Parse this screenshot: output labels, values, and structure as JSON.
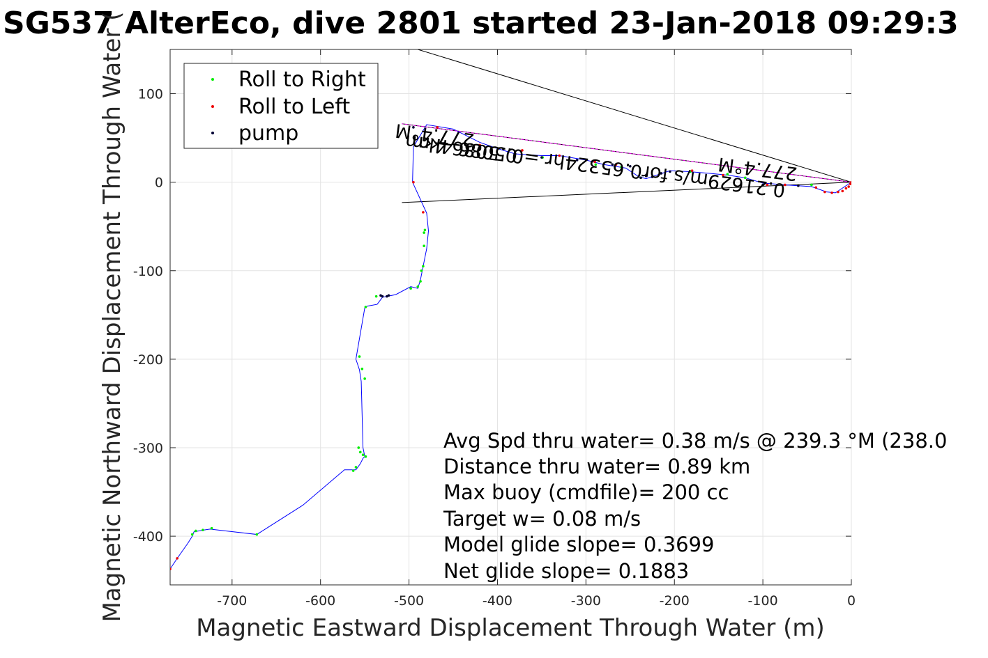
{
  "chart_data": {
    "type": "scatter",
    "title": "SG537 AlterEco, dive 2801 started 23-Jan-2018 09:29:3",
    "xlabel": "Magnetic Eastward Displacement Through Water (m)",
    "ylabel": "Magnetic Northward Displacement Through Water (",
    "xlim": [
      -770,
      0
    ],
    "ylim": [
      -455,
      150
    ],
    "grid": true,
    "xticks": [
      -700,
      -600,
      -500,
      -400,
      -300,
      -200,
      -100,
      0
    ],
    "yticks": [
      100,
      0,
      -100,
      -200,
      -300,
      -400
    ],
    "xtick_labels": [
      "-700",
      "-600",
      "-500",
      "-400",
      "-300",
      "-200",
      "-100",
      "0"
    ],
    "ytick_labels": [
      "100",
      "0",
      "-100",
      "-200",
      "-300",
      "-400"
    ],
    "legend": {
      "position": "top-left",
      "entries": [
        {
          "label": "Roll to Right",
          "color": "#00ee00"
        },
        {
          "label": "Roll to Left",
          "color": "#ee0000"
        },
        {
          "label": "pump",
          "color": "#000033"
        }
      ]
    },
    "series": [
      {
        "name": "track",
        "kind": "line",
        "color": "#0000ff",
        "x": [
          0,
          -18,
          -28,
          -45,
          -75,
          -100,
          -120,
          -140,
          -160,
          -185,
          -205,
          -220,
          -232,
          -240,
          -255,
          -280,
          -300,
          -330,
          -350,
          -380,
          -400,
          -420,
          -450,
          -480,
          -495,
          -496,
          -480,
          -478,
          -480,
          -483,
          -484,
          -487,
          -490,
          -498,
          -515,
          -530,
          -536,
          -547,
          -550,
          -560,
          -556,
          -554,
          -552,
          -550,
          -552,
          -555,
          -560,
          -573,
          -620,
          -672,
          -725,
          -732,
          -743,
          -745,
          -750,
          -762,
          -770
        ],
        "y": [
          0,
          -12,
          -11,
          -5,
          -3,
          -1,
          5,
          8,
          10,
          12,
          13,
          8,
          4,
          6,
          16,
          20,
          25,
          30,
          30,
          32,
          38,
          45,
          60,
          65,
          40,
          0,
          -35,
          -55,
          -75,
          -90,
          -95,
          -110,
          -120,
          -118,
          -127,
          -130,
          -138,
          -140,
          -142,
          -200,
          -212,
          -225,
          -300,
          -310,
          -312,
          -318,
          -325,
          -325,
          -365,
          -398,
          -392,
          -393,
          -395,
          -400,
          -408,
          -425,
          -437
        ]
      },
      {
        "name": "vector",
        "kind": "line",
        "color": "#ee00ee",
        "x": [
          0,
          -508
        ],
        "y": [
          0,
          66
        ]
      }
    ],
    "pump_points": {
      "color": "#000033",
      "x": [
        -532,
        -530,
        -525,
        -523,
        -225,
        -215,
        -205,
        -238,
        -232,
        -250,
        -270,
        -310,
        -350,
        -380,
        -420,
        -460,
        -495,
        -100,
        -60
      ],
      "y": [
        -128,
        -129,
        -129,
        -128,
        6,
        10,
        12,
        5,
        7,
        18,
        20,
        25,
        28,
        32,
        38,
        44,
        62,
        -3,
        -4
      ]
    },
    "roll_right_points": {
      "color": "#00ee00",
      "x": [
        -482,
        -483,
        -483,
        -484,
        -486,
        -487,
        -490,
        -498,
        -537,
        -549,
        -556,
        -553,
        -550,
        -557,
        -555,
        -552,
        -549,
        -560,
        -563,
        -672,
        -723,
        -733,
        -741,
        -745,
        -349,
        -289,
        -260,
        -238,
        -182,
        -140,
        -120,
        -45
      ],
      "y": [
        -54,
        -57,
        -72,
        -95,
        -100,
        -112,
        -118,
        -120,
        -129,
        -141,
        -197,
        -211,
        -222,
        -300,
        -305,
        -308,
        -310,
        -322,
        -326,
        -398,
        -391,
        -393,
        -394,
        -398,
        28,
        20,
        17,
        5,
        12,
        9,
        5,
        -3
      ]
    },
    "roll_left_points": {
      "color": "#ee0000",
      "x": [
        -484,
        -495,
        -468,
        -420,
        -372,
        -330,
        -290,
        -266,
        -180,
        -145,
        -95,
        -75,
        -40,
        -30,
        -22,
        -15,
        -10,
        -6,
        -3,
        -1,
        0,
        -762,
        -770
      ],
      "y": [
        -34,
        0,
        62,
        42,
        36,
        30,
        23,
        20,
        13,
        8,
        -3,
        -3,
        -6,
        -11,
        -12,
        -11,
        -10,
        -7,
        -5,
        -2,
        0,
        -425,
        -437
      ]
    },
    "reference_lines": [
      {
        "x": [
          0,
          -490
        ],
        "y": [
          0,
          150
        ]
      },
      {
        "x": [
          0,
          -508
        ],
        "y": [
          0,
          66
        ]
      },
      {
        "x": [
          0,
          -508
        ],
        "y": [
          0,
          -23
        ]
      }
    ],
    "vector_labels": [
      {
        "text": "277.4°M",
        "x": -470,
        "y": 60
      },
      {
        "text": "0.5086 4km",
        "x": -440,
        "y": 45
      },
      {
        "text": "0.21629m/s for0.65324hr =0.5086 4km",
        "x": -285,
        "y": 25
      },
      {
        "text": "277.4°M",
        "x": -105,
        "y": 22
      }
    ],
    "annotations": [
      "Avg Spd thru water=  0.38 m/s @ 239.3 °M (238.0",
      "Distance thru water=  0.89 km",
      "Max buoy (cmdfile)= 200 cc",
      "Target w= 0.08 m/s",
      "Model glide slope= 0.3699",
      "Net glide slope= 0.1883"
    ]
  }
}
